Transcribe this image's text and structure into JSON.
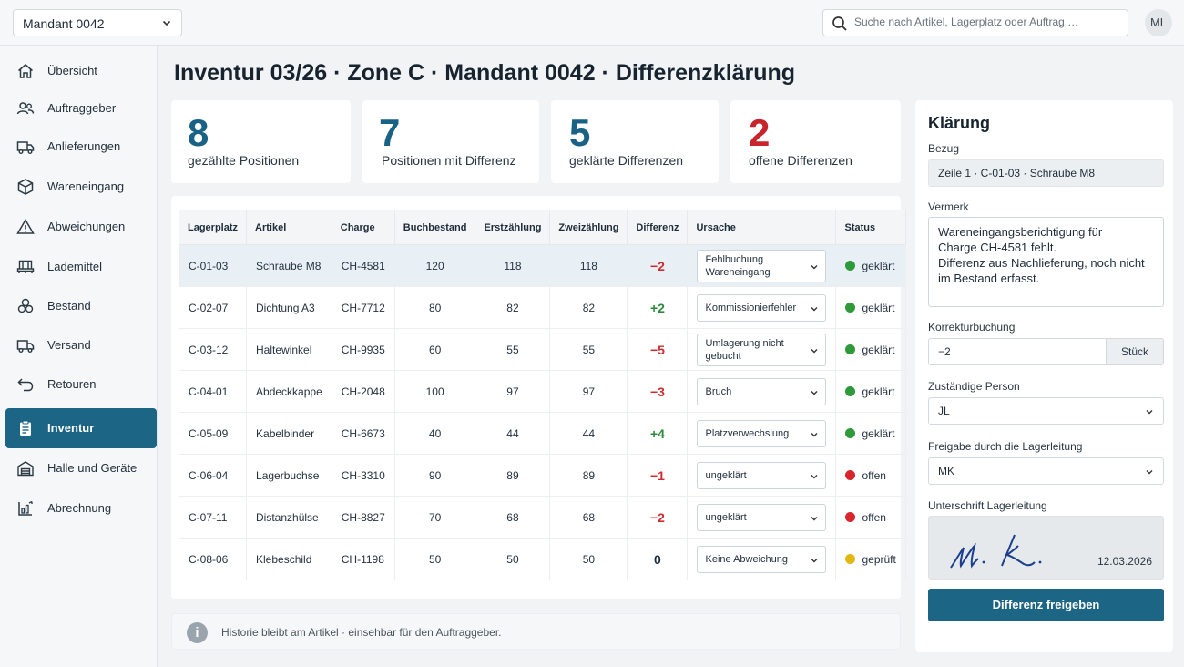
{
  "header": {
    "mandant": "Mandant 0042",
    "search_placeholder": "Suche nach Artikel, Lagerplatz oder Auftrag …",
    "avatar": "ML"
  },
  "sidebar": {
    "items": [
      {
        "label": "Übersicht",
        "icon": "home-icon"
      },
      {
        "label": "Auftraggeber",
        "icon": "users-icon"
      },
      {
        "label": "Anlieferungen",
        "icon": "truck-icon"
      },
      {
        "label": "Wareneingang",
        "icon": "box-icon"
      },
      {
        "label": "Abweichungen",
        "icon": "warning-icon"
      },
      {
        "label": "Lademittel",
        "icon": "pallet-icon"
      },
      {
        "label": "Bestand",
        "icon": "stack-icon"
      },
      {
        "label": "Versand",
        "icon": "truck-icon"
      },
      {
        "label": "Retouren",
        "icon": "return-icon"
      },
      {
        "label": "Inventur",
        "icon": "clipboard-icon",
        "active": true
      },
      {
        "label": "Halle und Geräte",
        "icon": "warehouse-icon"
      },
      {
        "label": "Abrechnung",
        "icon": "chart-icon"
      }
    ]
  },
  "main": {
    "title": "Inventur 03/26 · Zone C · Mandant 0042 · Differenzklärung",
    "stats": [
      {
        "value": "8",
        "caption": "gezählte Positionen"
      },
      {
        "value": "7",
        "caption": "Positionen mit Differenz"
      },
      {
        "value": "5",
        "caption": "geklärte Differenzen"
      },
      {
        "value": "2",
        "caption": "offene Differenzen"
      }
    ],
    "table": {
      "columns": [
        "Lagerplatz",
        "Artikel",
        "Charge",
        "Buchbestand",
        "Erstzählung",
        "Zweizählung",
        "Differenz",
        "Ursache",
        "Status"
      ],
      "rows": [
        {
          "platz": "C-01-03",
          "artikel": "Schraube M8",
          "charge": "CH-4581",
          "buch": "120",
          "erst": "118",
          "zweit": "118",
          "diff": "−2",
          "ursache": "Fehlbuchung Wareneingang",
          "status": "geklärt"
        },
        {
          "platz": "C-02-07",
          "artikel": "Dichtung A3",
          "charge": "CH-7712",
          "buch": "80",
          "erst": "82",
          "zweit": "82",
          "diff": "+2",
          "ursache": "Kommissionierfehler",
          "status": "geklärt"
        },
        {
          "platz": "C-03-12",
          "artikel": "Haltewinkel",
          "charge": "CH-9935",
          "buch": "60",
          "erst": "55",
          "zweit": "55",
          "diff": "−5",
          "ursache": "Umlagerung nicht gebucht",
          "status": "geklärt"
        },
        {
          "platz": "C-04-01",
          "artikel": "Abdeckkappe",
          "charge": "CH-2048",
          "buch": "100",
          "erst": "97",
          "zweit": "97",
          "diff": "−3",
          "ursache": "Bruch",
          "status": "geklärt"
        },
        {
          "platz": "C-05-09",
          "artikel": "Kabelbinder",
          "charge": "CH-6673",
          "buch": "40",
          "erst": "44",
          "zweit": "44",
          "diff": "+4",
          "ursache": "Platzverwechslung",
          "status": "geklärt"
        },
        {
          "platz": "C-06-04",
          "artikel": "Lagerbuchse",
          "charge": "CH-3310",
          "buch": "90",
          "erst": "89",
          "zweit": "89",
          "diff": "−1",
          "ursache": "ungeklärt",
          "status": "offen"
        },
        {
          "platz": "C-07-11",
          "artikel": "Distanzhülse",
          "charge": "CH-8827",
          "buch": "70",
          "erst": "68",
          "zweit": "68",
          "diff": "−2",
          "ursache": "ungeklärt",
          "status": "offen"
        },
        {
          "platz": "C-08-06",
          "artikel": "Klebeschild",
          "charge": "CH-1198",
          "buch": "50",
          "erst": "50",
          "zweit": "50",
          "diff": "0",
          "ursache": "Keine Abweichung",
          "status": "geprüft"
        }
      ]
    },
    "info": "Historie bleibt am Artikel · einsehbar für den Auftraggeber."
  },
  "panel": {
    "title": "Klärung",
    "bezug_label": "Bezug",
    "bezug_value": "Zeile 1 · C-01-03 · Schraube M8",
    "vermerk_label": "Vermerk",
    "vermerk_value": "Wareneingangsberichtigung für\nCharge CH-4581 fehlt.\nDifferenz aus Nachlieferung, noch nicht\nim Bestand erfasst.",
    "korrektur_label": "Korrekturbuchung",
    "korrektur_value": "−2",
    "korrektur_unit": "Stück",
    "person_label": "Zuständige Person",
    "person_value": "JL",
    "freigabe_label": "Freigabe durch die Lagerleitung",
    "freigabe_value": "MK",
    "unterschrift_label": "Unterschrift Lagerleitung",
    "signature": "M. K.",
    "datum": "12.03.2026",
    "button": "Differenz freigeben"
  },
  "colors": {
    "accent": "#1d6584",
    "negative": "#cf2a2f",
    "positive": "#2a8a3b",
    "status_geklaert": "#2e9a3a",
    "status_offen": "#d8262c",
    "status_geprueft": "#e2b712"
  }
}
